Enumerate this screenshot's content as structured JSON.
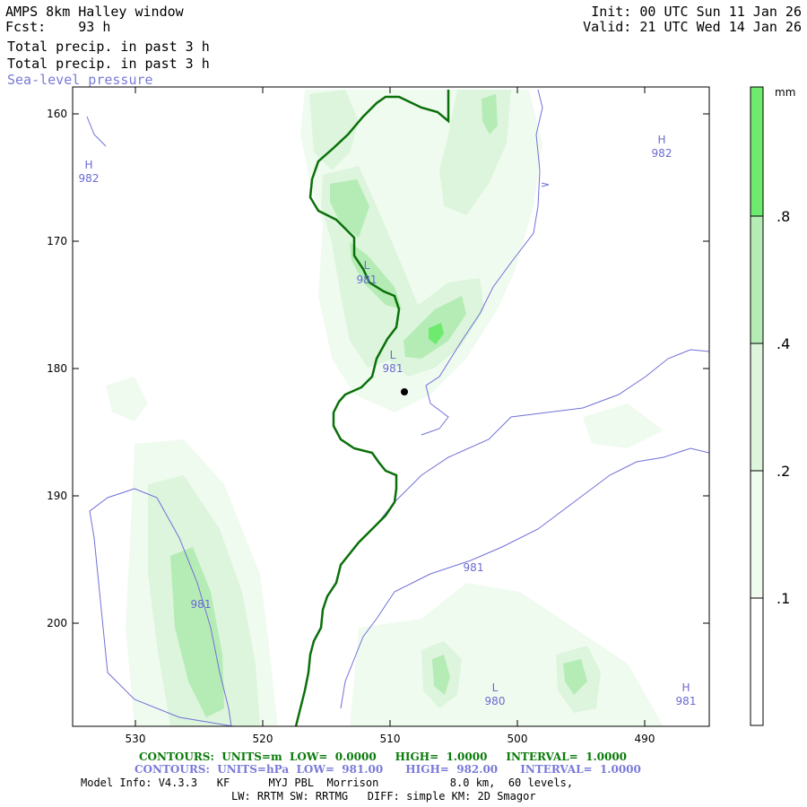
{
  "header": {
    "model_line": "AMPS 8km Halley window",
    "fcst_label": "Fcst:",
    "fcst_value": "93 h",
    "init_line": "Init: 00 UTC Sun 11 Jan 26",
    "valid_line": "Valid: 21 UTC Wed 14 Jan 26",
    "field1": "Total precip. in past 3 h",
    "field2": "Total precip. in past 3 h",
    "field3": "Sea-level pressure"
  },
  "chart_data": {
    "type": "heatmap",
    "x_ticks": [
      "530",
      "520",
      "510",
      "500",
      "490"
    ],
    "y_ticks": [
      "160",
      "170",
      "180",
      "190",
      "200"
    ],
    "colorbar": {
      "unit": "mm",
      "levels": [
        ".1",
        ".2",
        ".4",
        ".8"
      ],
      "colors": [
        "#ffffff",
        "#f0fbf0",
        "#dcf5dc",
        "#b5ecb5",
        "#6eea6e"
      ]
    },
    "pressure_labels": [
      {
        "letter": "H",
        "value": "982"
      },
      {
        "letter": "H",
        "value": "982"
      },
      {
        "letter": "L",
        "value": "981"
      },
      {
        "letter": "L",
        "value": "981"
      },
      {
        "letter": "L",
        "value": "980"
      },
      {
        "letter": "H",
        "value": "981"
      }
    ],
    "isobar_labels": [
      "981",
      "981"
    ]
  },
  "footer": {
    "contours_green": "CONTOURS:  UNITS=m  LOW=  0.0000     HIGH=  1.0000     INTERVAL=  1.0000",
    "contours_blue": "CONTOURS:  UNITS=hPa  LOW=  981.00      HIGH=  982.00      INTERVAL=  1.0000",
    "model_info": "Model Info: V4.3.3   KF      MYJ PBL  Morrison           8.0 km,  60 levels,",
    "physics": "LW: RRTM SW: RRTMG   DIFF: simple KM: 2D Smagor"
  },
  "colors": {
    "coast": "#0a700a",
    "isobar": "#7070d8",
    "frame": "#000000"
  }
}
